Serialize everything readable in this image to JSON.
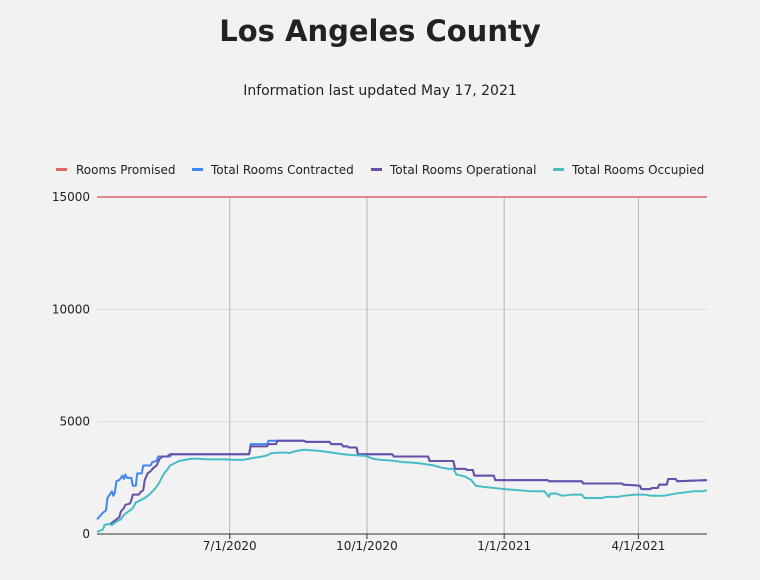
{
  "title": "Los Angeles County",
  "subtitle": "Information last updated May 17, 2021",
  "colors": {
    "background": "#f2f2f2",
    "grid": "#dcdcdc",
    "vgrid": "#b4b4b4",
    "axis": "#333333"
  },
  "chart_data": {
    "type": "line",
    "title": "",
    "xlabel": "",
    "ylabel": "",
    "grid": true,
    "legend_position": "top",
    "ylim": [
      0,
      15000
    ],
    "xlim": [
      "2020-04-03",
      "2021-05-17"
    ],
    "y_ticks": [
      0,
      5000,
      10000,
      15000
    ],
    "x_ticks": [
      {
        "date": "2020-07-01",
        "label": "7/1/2020"
      },
      {
        "date": "2020-10-01",
        "label": "10/1/2020"
      },
      {
        "date": "2021-01-01",
        "label": "1/1/2021"
      },
      {
        "date": "2021-04-01",
        "label": "4/1/2021"
      }
    ],
    "series": [
      {
        "name": "Rooms Promised",
        "color": "#e06666",
        "points": [
          [
            "2020-04-03",
            15000
          ],
          [
            "2021-05-17",
            15000
          ]
        ]
      },
      {
        "name": "Total Rooms Contracted",
        "color": "#4285f4",
        "points": [
          [
            "2020-04-03",
            650
          ],
          [
            "2020-04-05",
            800
          ],
          [
            "2020-04-07",
            950
          ],
          [
            "2020-04-09",
            1050
          ],
          [
            "2020-04-10",
            1600
          ],
          [
            "2020-04-12",
            1800
          ],
          [
            "2020-04-13",
            1900
          ],
          [
            "2020-04-14",
            1700
          ],
          [
            "2020-04-15",
            1850
          ],
          [
            "2020-04-16",
            2350
          ],
          [
            "2020-04-18",
            2400
          ],
          [
            "2020-04-20",
            2600
          ],
          [
            "2020-04-21",
            2450
          ],
          [
            "2020-04-22",
            2650
          ],
          [
            "2020-04-23",
            2500
          ],
          [
            "2020-04-26",
            2500
          ],
          [
            "2020-04-27",
            2150
          ],
          [
            "2020-04-29",
            2150
          ],
          [
            "2020-04-30",
            2700
          ],
          [
            "2020-05-03",
            2700
          ],
          [
            "2020-05-04",
            3050
          ],
          [
            "2020-05-09",
            3050
          ],
          [
            "2020-05-10",
            3200
          ],
          [
            "2020-05-13",
            3250
          ],
          [
            "2020-05-14",
            3450
          ],
          [
            "2020-05-22",
            3450
          ],
          [
            "2020-05-23",
            3550
          ],
          [
            "2020-07-14",
            3550
          ],
          [
            "2020-07-15",
            4000
          ],
          [
            "2020-07-26",
            4000
          ],
          [
            "2020-07-27",
            4150
          ],
          [
            "2020-08-01",
            4150
          ],
          [
            "2020-08-02",
            4150
          ],
          [
            "2020-08-20",
            4150
          ],
          [
            "2020-08-21",
            4100
          ],
          [
            "2020-09-06",
            4100
          ],
          [
            "2020-09-07",
            4000
          ],
          [
            "2020-09-14",
            4000
          ],
          [
            "2020-09-15",
            3900
          ],
          [
            "2020-09-18",
            3900
          ],
          [
            "2020-09-19",
            3850
          ],
          [
            "2020-09-24",
            3850
          ],
          [
            "2020-09-25",
            3550
          ],
          [
            "2020-10-18",
            3550
          ],
          [
            "2020-10-19",
            3450
          ],
          [
            "2020-11-11",
            3450
          ],
          [
            "2020-11-12",
            3250
          ],
          [
            "2020-11-28",
            3250
          ],
          [
            "2020-11-29",
            2900
          ],
          [
            "2020-12-06",
            2900
          ],
          [
            "2020-12-07",
            2850
          ],
          [
            "2020-12-11",
            2850
          ],
          [
            "2020-12-12",
            2600
          ],
          [
            "2020-12-25",
            2600
          ],
          [
            "2020-12-26",
            2400
          ],
          [
            "2021-01-30",
            2400
          ],
          [
            "2021-01-31",
            2350
          ],
          [
            "2021-02-22",
            2350
          ],
          [
            "2021-02-23",
            2250
          ],
          [
            "2021-03-21",
            2250
          ],
          [
            "2021-03-22",
            2200
          ],
          [
            "2021-04-02",
            2150
          ],
          [
            "2021-04-03",
            2000
          ],
          [
            "2021-04-09",
            2000
          ],
          [
            "2021-04-10",
            2050
          ],
          [
            "2021-04-14",
            2050
          ],
          [
            "2021-04-15",
            2200
          ],
          [
            "2021-04-20",
            2200
          ],
          [
            "2021-04-21",
            2450
          ],
          [
            "2021-04-26",
            2450
          ],
          [
            "2021-04-27",
            2350
          ],
          [
            "2021-05-17",
            2400
          ]
        ]
      },
      {
        "name": "Total Rooms Operational",
        "color": "#674ea7",
        "points": [
          [
            "2020-04-12",
            450
          ],
          [
            "2020-04-14",
            550
          ],
          [
            "2020-04-16",
            650
          ],
          [
            "2020-04-18",
            750
          ],
          [
            "2020-04-19",
            1000
          ],
          [
            "2020-04-21",
            1150
          ],
          [
            "2020-04-22",
            1300
          ],
          [
            "2020-04-25",
            1350
          ],
          [
            "2020-04-26",
            1500
          ],
          [
            "2020-04-27",
            1750
          ],
          [
            "2020-05-01",
            1750
          ],
          [
            "2020-05-02",
            1850
          ],
          [
            "2020-05-04",
            1950
          ],
          [
            "2020-05-05",
            2400
          ],
          [
            "2020-05-07",
            2700
          ],
          [
            "2020-05-09",
            2800
          ],
          [
            "2020-05-11",
            2950
          ],
          [
            "2020-05-13",
            3050
          ],
          [
            "2020-05-15",
            3350
          ],
          [
            "2020-05-17",
            3450
          ],
          [
            "2020-05-20",
            3450
          ],
          [
            "2020-05-22",
            3550
          ],
          [
            "2020-07-14",
            3550
          ],
          [
            "2020-07-15",
            3900
          ],
          [
            "2020-07-26",
            3900
          ],
          [
            "2020-07-27",
            4000
          ],
          [
            "2020-08-01",
            4000
          ],
          [
            "2020-08-02",
            4150
          ],
          [
            "2020-08-20",
            4150
          ],
          [
            "2020-08-21",
            4100
          ],
          [
            "2020-09-06",
            4100
          ],
          [
            "2020-09-07",
            4000
          ],
          [
            "2020-09-14",
            4000
          ],
          [
            "2020-09-15",
            3900
          ],
          [
            "2020-09-18",
            3900
          ],
          [
            "2020-09-19",
            3850
          ],
          [
            "2020-09-24",
            3850
          ],
          [
            "2020-09-25",
            3550
          ],
          [
            "2020-10-18",
            3550
          ],
          [
            "2020-10-19",
            3450
          ],
          [
            "2020-11-11",
            3450
          ],
          [
            "2020-11-12",
            3250
          ],
          [
            "2020-11-28",
            3250
          ],
          [
            "2020-11-29",
            2900
          ],
          [
            "2020-12-06",
            2900
          ],
          [
            "2020-12-07",
            2850
          ],
          [
            "2020-12-11",
            2850
          ],
          [
            "2020-12-12",
            2600
          ],
          [
            "2020-12-25",
            2600
          ],
          [
            "2020-12-26",
            2400
          ],
          [
            "2021-01-30",
            2400
          ],
          [
            "2021-01-31",
            2350
          ],
          [
            "2021-02-22",
            2350
          ],
          [
            "2021-02-23",
            2250
          ],
          [
            "2021-03-21",
            2250
          ],
          [
            "2021-03-22",
            2200
          ],
          [
            "2021-04-02",
            2150
          ],
          [
            "2021-04-03",
            2000
          ],
          [
            "2021-04-09",
            2000
          ],
          [
            "2021-04-10",
            2050
          ],
          [
            "2021-04-14",
            2050
          ],
          [
            "2021-04-15",
            2200
          ],
          [
            "2021-04-20",
            2200
          ],
          [
            "2021-04-21",
            2450
          ],
          [
            "2021-04-26",
            2450
          ],
          [
            "2021-04-27",
            2350
          ],
          [
            "2021-05-17",
            2400
          ]
        ]
      },
      {
        "name": "Total Rooms Occupied",
        "color": "#46bdc6",
        "points": [
          [
            "2020-04-03",
            100
          ],
          [
            "2020-04-05",
            150
          ],
          [
            "2020-04-07",
            200
          ],
          [
            "2020-04-08",
            400
          ],
          [
            "2020-04-11",
            450
          ],
          [
            "2020-04-13",
            400
          ],
          [
            "2020-04-16",
            550
          ],
          [
            "2020-04-19",
            650
          ],
          [
            "2020-04-21",
            850
          ],
          [
            "2020-04-24",
            1000
          ],
          [
            "2020-04-27",
            1150
          ],
          [
            "2020-04-29",
            1400
          ],
          [
            "2020-05-02",
            1500
          ],
          [
            "2020-05-05",
            1600
          ],
          [
            "2020-05-08",
            1750
          ],
          [
            "2020-05-11",
            1950
          ],
          [
            "2020-05-14",
            2200
          ],
          [
            "2020-05-16",
            2450
          ],
          [
            "2020-05-18",
            2700
          ],
          [
            "2020-05-20",
            2850
          ],
          [
            "2020-05-22",
            3050
          ],
          [
            "2020-05-25",
            3150
          ],
          [
            "2020-05-28",
            3250
          ],
          [
            "2020-06-01",
            3300
          ],
          [
            "2020-06-05",
            3350
          ],
          [
            "2020-06-10",
            3350
          ],
          [
            "2020-06-15",
            3330
          ],
          [
            "2020-06-20",
            3320
          ],
          [
            "2020-06-28",
            3320
          ],
          [
            "2020-07-05",
            3300
          ],
          [
            "2020-07-10",
            3300
          ],
          [
            "2020-07-14",
            3350
          ],
          [
            "2020-07-18",
            3400
          ],
          [
            "2020-07-23",
            3450
          ],
          [
            "2020-07-26",
            3500
          ],
          [
            "2020-07-29",
            3600
          ],
          [
            "2020-08-03",
            3620
          ],
          [
            "2020-08-08",
            3620
          ],
          [
            "2020-08-10",
            3600
          ],
          [
            "2020-08-12",
            3650
          ],
          [
            "2020-08-15",
            3700
          ],
          [
            "2020-08-20",
            3750
          ],
          [
            "2020-08-25",
            3720
          ],
          [
            "2020-08-30",
            3700
          ],
          [
            "2020-09-05",
            3650
          ],
          [
            "2020-09-10",
            3600
          ],
          [
            "2020-09-15",
            3550
          ],
          [
            "2020-09-20",
            3520
          ],
          [
            "2020-09-25",
            3500
          ],
          [
            "2020-09-30",
            3480
          ],
          [
            "2020-10-05",
            3350
          ],
          [
            "2020-10-10",
            3300
          ],
          [
            "2020-10-15",
            3280
          ],
          [
            "2020-10-20",
            3250
          ],
          [
            "2020-10-25",
            3200
          ],
          [
            "2020-10-30",
            3180
          ],
          [
            "2020-11-05",
            3150
          ],
          [
            "2020-11-10",
            3100
          ],
          [
            "2020-11-15",
            3050
          ],
          [
            "2020-11-20",
            2950
          ],
          [
            "2020-11-25",
            2900
          ],
          [
            "2020-11-28",
            2900
          ],
          [
            "2020-11-30",
            2650
          ],
          [
            "2020-12-03",
            2600
          ],
          [
            "2020-12-06",
            2550
          ],
          [
            "2020-12-10",
            2400
          ],
          [
            "2020-12-13",
            2150
          ],
          [
            "2020-12-18",
            2100
          ],
          [
            "2020-12-25",
            2050
          ],
          [
            "2021-01-01",
            2000
          ],
          [
            "2021-01-10",
            1950
          ],
          [
            "2021-01-20",
            1900
          ],
          [
            "2021-01-28",
            1900
          ],
          [
            "2021-01-31",
            1650
          ],
          [
            "2021-02-01",
            1800
          ],
          [
            "2021-02-05",
            1800
          ],
          [
            "2021-02-09",
            1700
          ],
          [
            "2021-02-15",
            1750
          ],
          [
            "2021-02-22",
            1750
          ],
          [
            "2021-02-24",
            1600
          ],
          [
            "2021-03-01",
            1600
          ],
          [
            "2021-03-08",
            1600
          ],
          [
            "2021-03-10",
            1650
          ],
          [
            "2021-03-18",
            1650
          ],
          [
            "2021-03-22",
            1700
          ],
          [
            "2021-03-30",
            1750
          ],
          [
            "2021-04-05",
            1750
          ],
          [
            "2021-04-10",
            1700
          ],
          [
            "2021-04-18",
            1700
          ],
          [
            "2021-04-22",
            1750
          ],
          [
            "2021-04-26",
            1800
          ],
          [
            "2021-05-02",
            1850
          ],
          [
            "2021-05-08",
            1900
          ],
          [
            "2021-05-14",
            1900
          ],
          [
            "2021-05-17",
            1950
          ]
        ]
      }
    ]
  }
}
